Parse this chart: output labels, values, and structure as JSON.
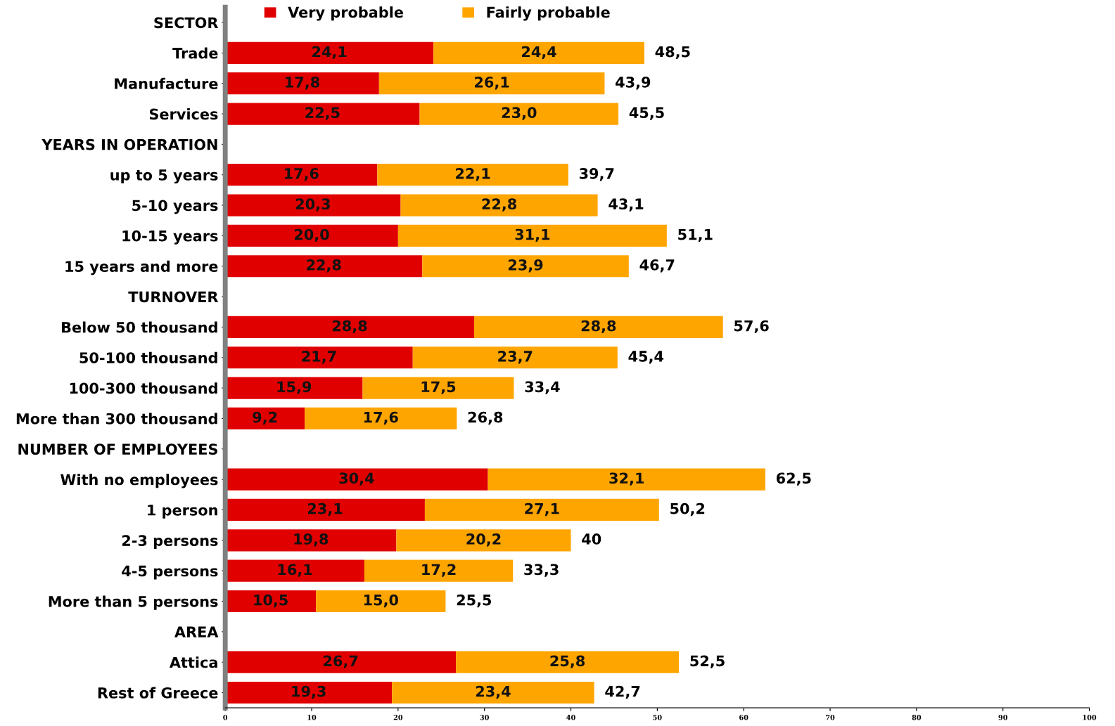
{
  "chart_data": {
    "type": "bar",
    "orientation": "horizontal",
    "stacked": true,
    "categories": [
      "SECTOR",
      "Trade",
      "Manufacture",
      "Services",
      "YEARS IN OPERATION",
      "up to 5 years",
      "5-10 years",
      "10-15 years",
      "15 years and more",
      "TURNOVER",
      "Below 50 thousand",
      "50-100 thousand",
      "100-300 thousand",
      "More than 300 thousand",
      "NUMBER OF EMPLOYEES",
      "With no employees",
      "1 person",
      "2-3 persons",
      "4-5 persons",
      "More than 5 persons",
      "AREA",
      "Attica",
      "Rest of Greece"
    ],
    "series": [
      {
        "name": "Very probable",
        "color": "#e00000",
        "values": [
          null,
          24.1,
          17.8,
          22.5,
          null,
          17.6,
          20.3,
          20.0,
          22.8,
          null,
          28.8,
          21.7,
          15.9,
          9.2,
          null,
          30.4,
          23.1,
          19.8,
          16.1,
          10.5,
          null,
          26.7,
          19.3
        ],
        "value_labels": [
          null,
          "24,1",
          "17,8",
          "22,5",
          null,
          "17,6",
          "20,3",
          "20,0",
          "22,8",
          null,
          "28,8",
          "21,7",
          "15,9",
          "9,2",
          null,
          "30,4",
          "23,1",
          "19,8",
          "16,1",
          "10,5",
          null,
          "26,7",
          "19,3"
        ]
      },
      {
        "name": "Fairly probable",
        "color": "#ffa500",
        "values": [
          null,
          24.4,
          26.1,
          23.0,
          null,
          22.1,
          22.8,
          31.1,
          23.9,
          null,
          28.8,
          23.7,
          17.5,
          17.6,
          null,
          32.1,
          27.1,
          20.2,
          17.2,
          15.0,
          null,
          25.8,
          23.4
        ],
        "value_labels": [
          null,
          "24,4",
          "26,1",
          "23,0",
          null,
          "22,1",
          "22,8",
          "31,1",
          "23,9",
          null,
          "28,8",
          "23,7",
          "17,5",
          "17,6",
          null,
          "32,1",
          "27,1",
          "20,2",
          "17,2",
          "15,0",
          null,
          "25,8",
          "23,4"
        ]
      }
    ],
    "totals": [
      null,
      "48,5",
      "43,9",
      "45,5",
      null,
      "39,7",
      "43,1",
      "51,1",
      "46,7",
      null,
      "57,6",
      "45,4",
      "33,4",
      "26,8",
      null,
      "62,5",
      "50,2",
      "40",
      "33,3",
      "25,5",
      null,
      "52,5",
      "42,7"
    ],
    "xlim": [
      0,
      100
    ],
    "xticks": [
      0,
      10,
      20,
      30,
      40,
      50,
      60,
      70,
      80,
      90,
      100
    ],
    "grid": false,
    "legend": "top left"
  }
}
